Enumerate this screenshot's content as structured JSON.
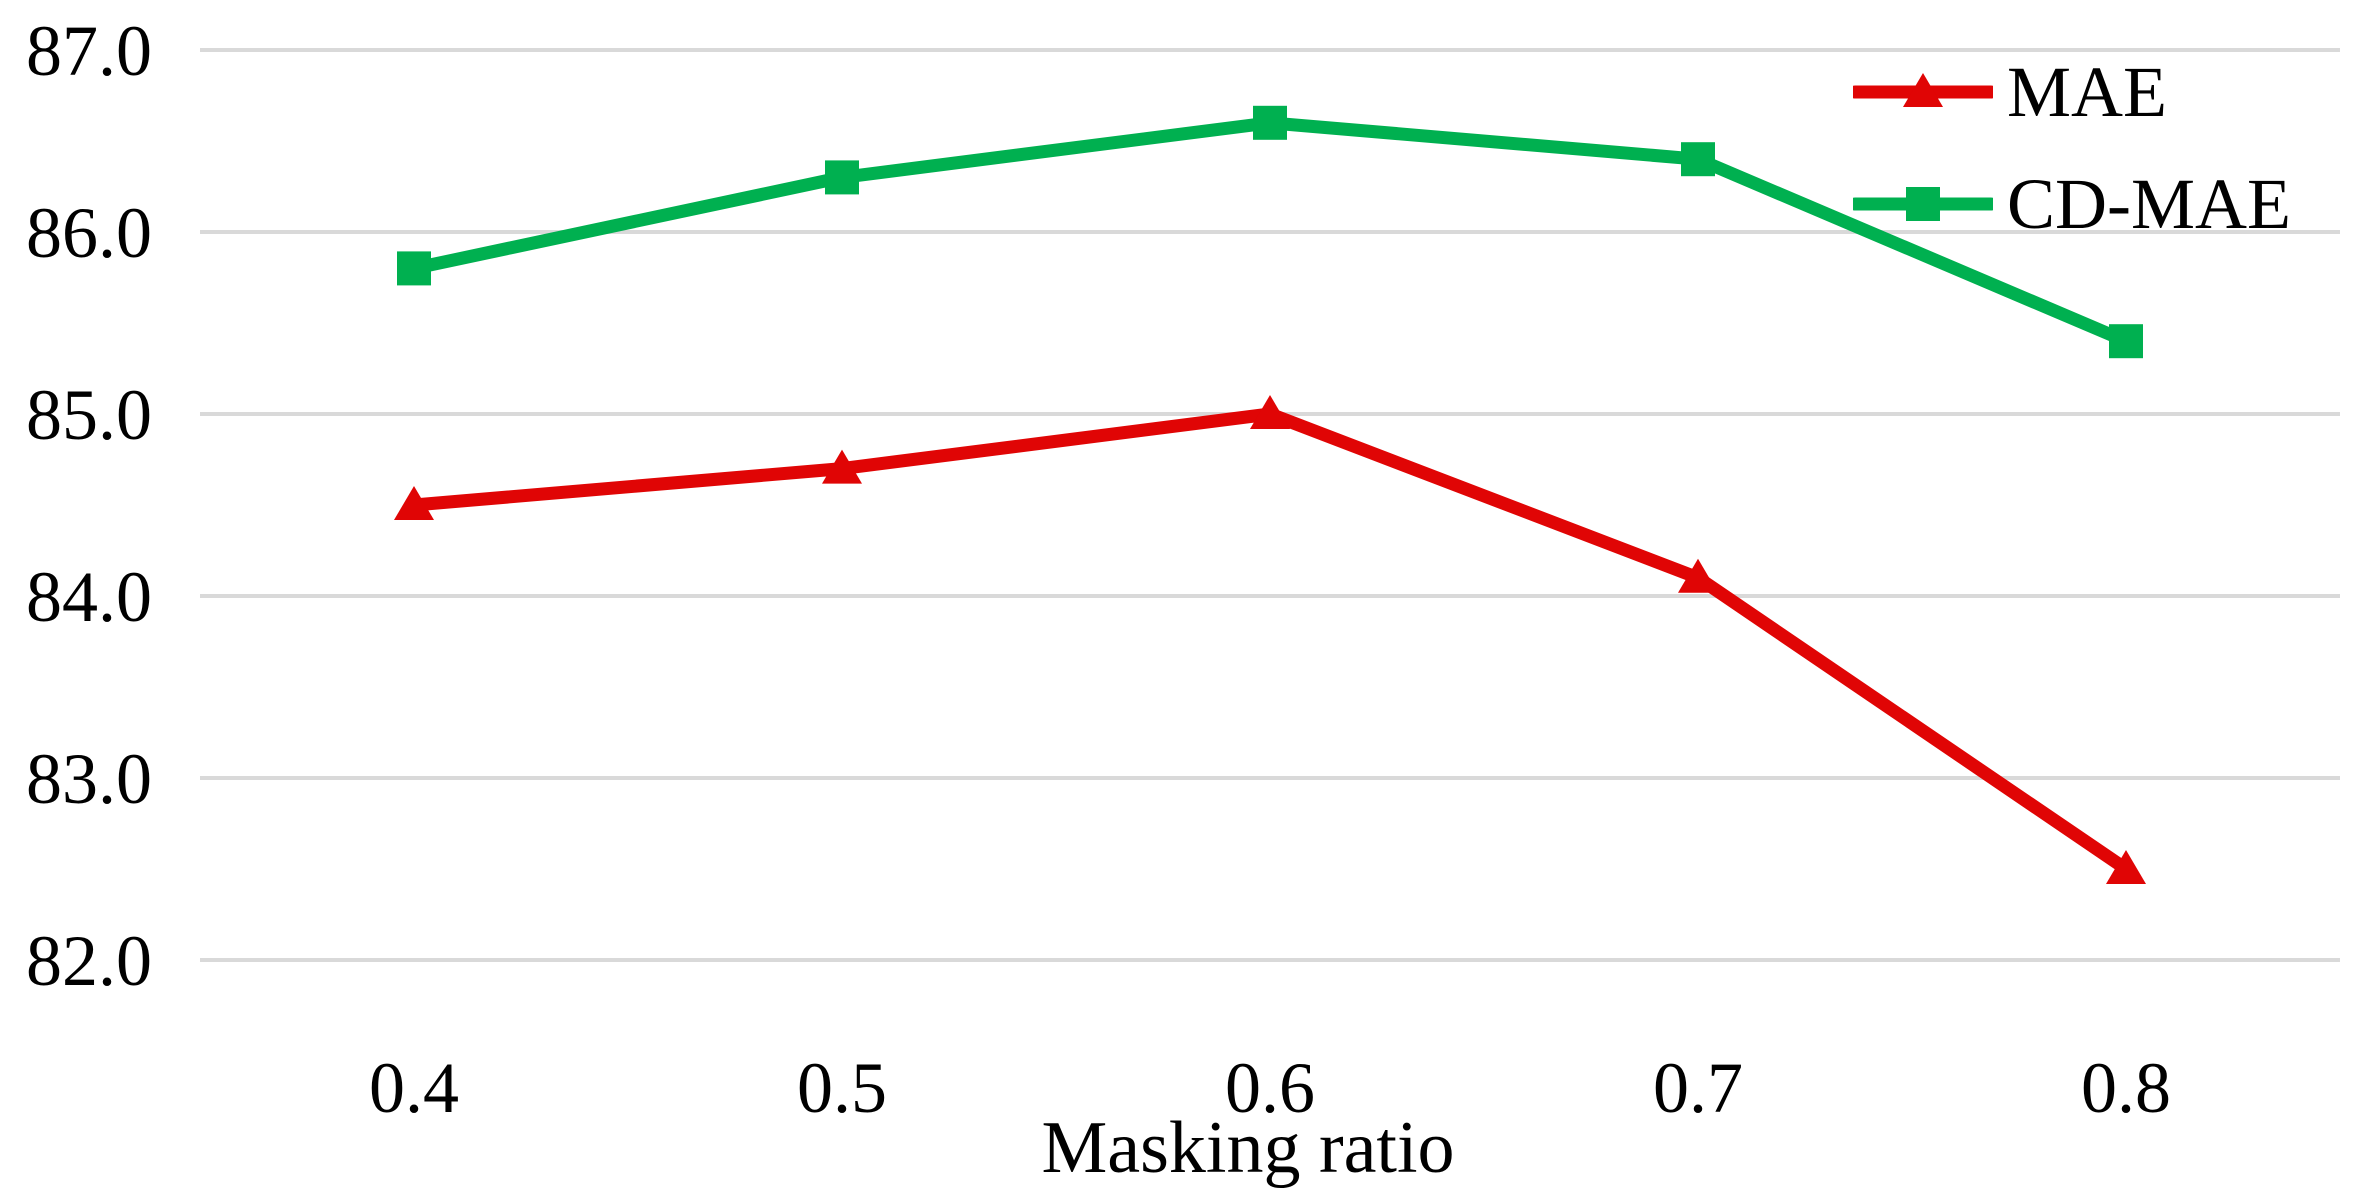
{
  "chart_data": {
    "type": "line",
    "title": "",
    "xlabel": "Masking ratio",
    "ylabel": "",
    "categories": [
      "0.4",
      "0.5",
      "0.6",
      "0.7",
      "0.8"
    ],
    "series": [
      {
        "name": "MAE",
        "color": "#e00505",
        "marker": "triangle",
        "values": [
          84.5,
          84.7,
          85.0,
          84.1,
          82.5
        ]
      },
      {
        "name": "CD-MAE",
        "color": "#00b050",
        "marker": "square",
        "values": [
          85.8,
          86.3,
          86.6,
          86.4,
          85.4
        ]
      }
    ],
    "y_ticks": [
      "87.0",
      "86.0",
      "85.0",
      "84.0",
      "83.0",
      "82.0"
    ],
    "ylim": [
      82,
      87
    ],
    "grid": "horizontal",
    "gridline_color": "#d9d9d9",
    "text_color": "#000000",
    "background": "#ffffff",
    "legend_position": "top-right"
  }
}
